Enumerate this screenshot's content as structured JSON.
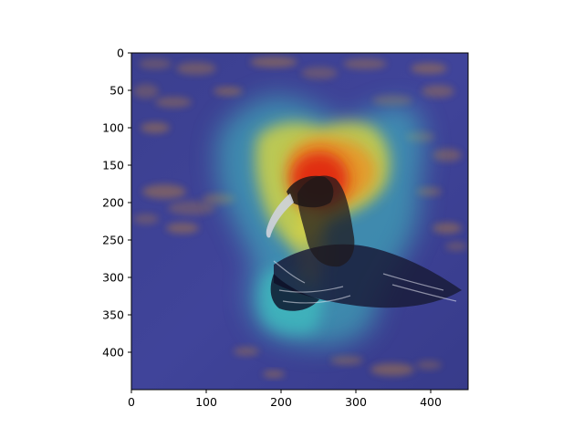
{
  "chart_data": {
    "type": "heatmap",
    "title": "",
    "xlabel": "",
    "ylabel": "",
    "xlim": [
      0,
      450
    ],
    "ylim": [
      450,
      0
    ],
    "xticks": [
      0,
      100,
      200,
      300,
      400
    ],
    "yticks": [
      0,
      50,
      100,
      150,
      200,
      250,
      300,
      350,
      400
    ],
    "grid": false,
    "legend": false,
    "image_content": "pond-water-with-floating-algae",
    "bird": {
      "neck_bend": [
        225,
        210
      ],
      "beak_end": [
        180,
        240
      ]
    },
    "overlay_colormap": "jet",
    "overlay": {
      "hotspot": [
        250,
        185
      ],
      "warm_region_center": [
        300,
        175
      ],
      "cool_halo_bounds": {
        "x": [
          160,
          390
        ],
        "y": [
          60,
          385
        ]
      }
    }
  },
  "colors": {
    "water_base": "#3c3f92",
    "algae": "#a9774a",
    "heat_red": "#e11b0e",
    "heat_yellow": "#f0e22e",
    "heat_cyan": "#3fd2c6",
    "axis": "#000000"
  }
}
